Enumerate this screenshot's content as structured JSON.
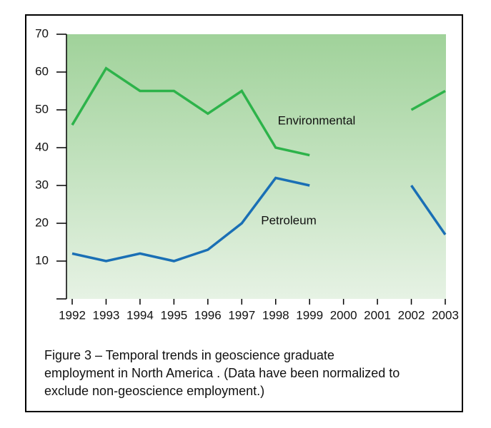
{
  "chart_data": {
    "type": "line",
    "caption": "Figure 3 – Temporal trends in geoscience graduate employment in North America . (Data have been normalized to exclude non-geoscience employment.)",
    "categories": [
      "1992",
      "1993",
      "1994",
      "1995",
      "1996",
      "1997",
      "1998",
      "1999",
      "2000",
      "2001",
      "2002",
      "2003"
    ],
    "series": [
      {
        "name": "Environmental",
        "color": "#2db34a",
        "values": [
          46,
          61,
          55,
          55,
          49,
          55,
          40,
          38,
          null,
          null,
          50,
          55
        ]
      },
      {
        "name": "Petroleum",
        "color": "#1a6fb5",
        "values": [
          12,
          10,
          12,
          10,
          13,
          20,
          32,
          30,
          null,
          null,
          30,
          17
        ]
      }
    ],
    "ylim": [
      0,
      70
    ],
    "yticks": [
      10,
      20,
      30,
      40,
      50,
      60,
      70
    ]
  }
}
